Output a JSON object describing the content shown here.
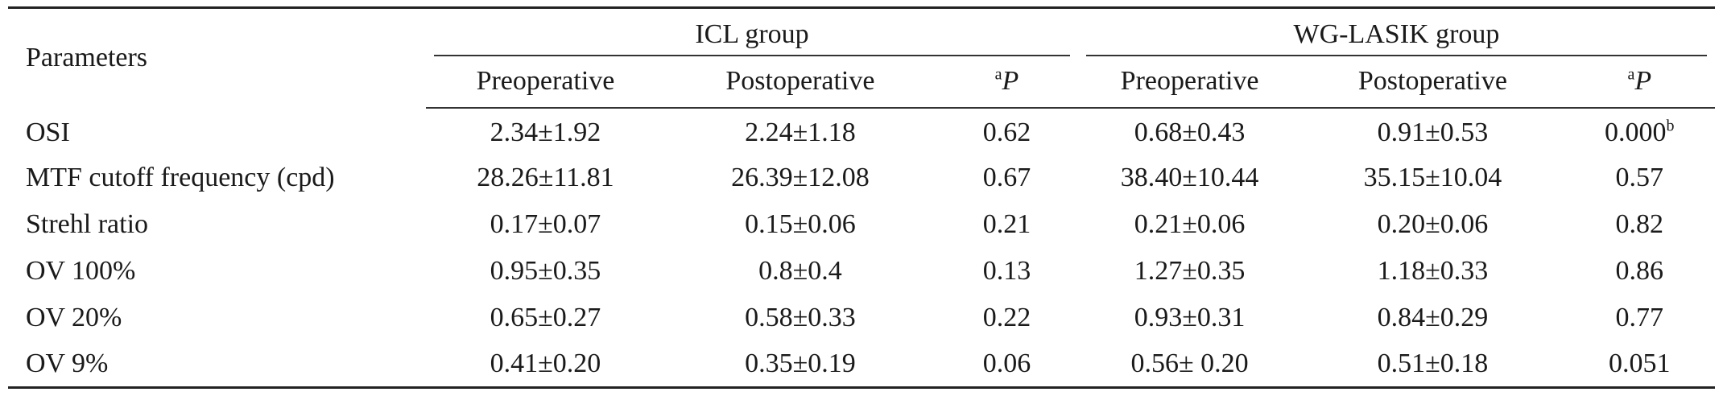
{
  "table": {
    "param_header": "Parameters",
    "groups": [
      {
        "name": "ICL group"
      },
      {
        "name": "WG-LASIK group"
      }
    ],
    "subheaders": {
      "pre": "Preoperative",
      "post": "Postoperative",
      "p_sup": "a",
      "p_label": "P"
    },
    "rows": [
      {
        "param": "OSI",
        "icl_pre": "2.34±1.92",
        "icl_post": "2.24±1.18",
        "icl_p": "0.62",
        "wg_pre": "0.68±0.43",
        "wg_post": "0.91±0.53",
        "wg_p": "0.000",
        "wg_p_sup": "b"
      },
      {
        "param": "MTF cutoff frequency (cpd)",
        "icl_pre": "28.26±11.81",
        "icl_post": "26.39±12.08",
        "icl_p": "0.67",
        "wg_pre": "38.40±10.44",
        "wg_post": "35.15±10.04",
        "wg_p": "0.57",
        "wg_p_sup": ""
      },
      {
        "param": "Strehl ratio",
        "icl_pre": "0.17±0.07",
        "icl_post": "0.15±0.06",
        "icl_p": "0.21",
        "wg_pre": "0.21±0.06",
        "wg_post": "0.20±0.06",
        "wg_p": "0.82",
        "wg_p_sup": ""
      },
      {
        "param": "OV 100%",
        "icl_pre": "0.95±0.35",
        "icl_post": "0.8±0.4",
        "icl_p": "0.13",
        "wg_pre": "1.27±0.35",
        "wg_post": "1.18±0.33",
        "wg_p": "0.86",
        "wg_p_sup": ""
      },
      {
        "param": "OV 20%",
        "icl_pre": "0.65±0.27",
        "icl_post": "0.58±0.33",
        "icl_p": "0.22",
        "wg_pre": "0.93±0.31",
        "wg_post": "0.84±0.29",
        "wg_p": "0.77",
        "wg_p_sup": ""
      },
      {
        "param": "OV 9%",
        "icl_pre": "0.41±0.20",
        "icl_post": "0.35±0.19",
        "icl_p": "0.06",
        "wg_pre": "0.56± 0.20",
        "wg_post": "0.51±0.18",
        "wg_p": "0.051",
        "wg_p_sup": ""
      }
    ]
  }
}
